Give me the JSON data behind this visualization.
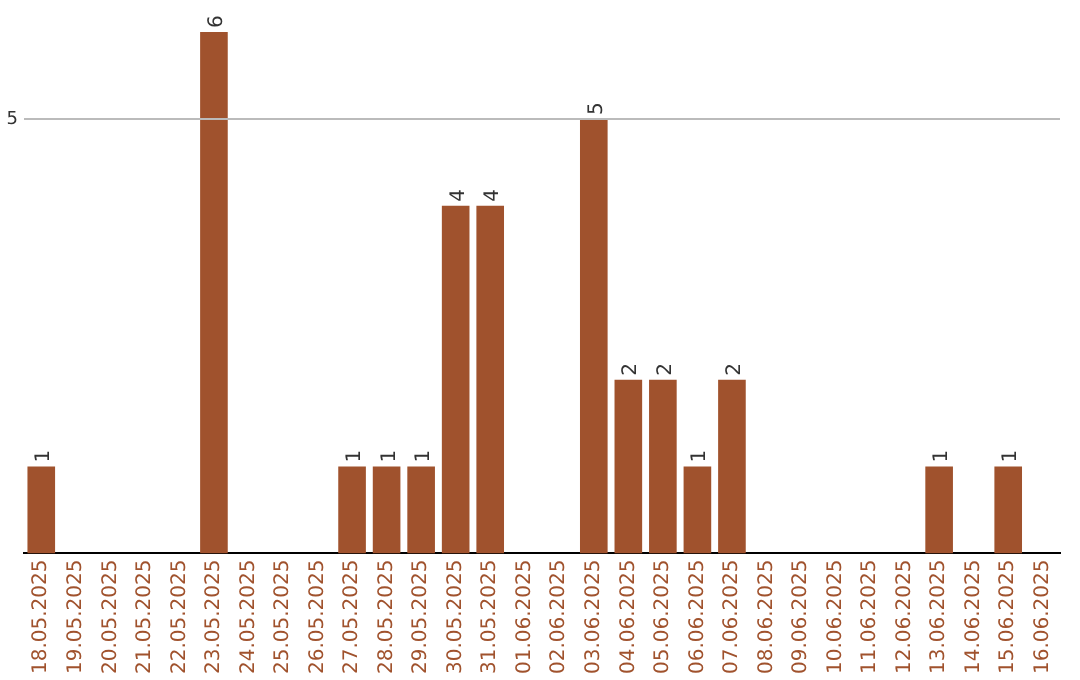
{
  "chart_data": {
    "type": "bar",
    "categories": [
      "18.05.2025",
      "19.05.2025",
      "20.05.2025",
      "21.05.2025",
      "22.05.2025",
      "23.05.2025",
      "24.05.2025",
      "25.05.2025",
      "26.05.2025",
      "27.05.2025",
      "28.05.2025",
      "29.05.2025",
      "30.05.2025",
      "31.05.2025",
      "01.06.2025",
      "02.06.2025",
      "03.06.2025",
      "04.06.2025",
      "05.06.2025",
      "06.06.2025",
      "07.06.2025",
      "08.06.2025",
      "09.06.2025",
      "10.06.2025",
      "11.06.2025",
      "12.06.2025",
      "13.06.2025",
      "14.06.2025",
      "15.06.2025",
      "16.06.2025"
    ],
    "values": [
      1,
      0,
      0,
      0,
      0,
      6,
      0,
      0,
      0,
      1,
      1,
      1,
      4,
      4,
      0,
      0,
      5,
      2,
      2,
      1,
      2,
      0,
      0,
      0,
      0,
      0,
      1,
      0,
      1,
      0
    ],
    "value_labels": [
      "1",
      null,
      null,
      null,
      null,
      "6",
      null,
      null,
      null,
      "1",
      "1",
      "1",
      "4",
      "4",
      null,
      null,
      "5",
      "2",
      "2",
      "1",
      "2",
      null,
      null,
      null,
      null,
      null,
      "1",
      null,
      "1",
      null
    ],
    "color": "#a0522d",
    "ref_lines": [
      {
        "axis": "y",
        "value": 5,
        "label": "5",
        "color": "#bbbbbb"
      }
    ],
    "legend": false
  }
}
